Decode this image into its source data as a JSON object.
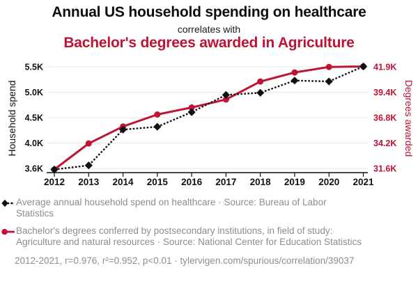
{
  "header": {
    "title_line1": "Annual US household spending on healthcare",
    "connector": "correlates with",
    "title_line2": "Bachelor's degrees awarded in Agriculture"
  },
  "chart_data": {
    "type": "line",
    "title": "Annual US household spending on healthcare correlates with Bachelor's degrees awarded in Agriculture",
    "x_labels": [
      "2012",
      "2013",
      "2014",
      "2015",
      "2016",
      "2017",
      "2018",
      "2019",
      "2020",
      "2021"
    ],
    "series": [
      {
        "name": "Average annual household spend on healthcare",
        "axis": "left",
        "color": "#111111",
        "style": "dashed-diamond",
        "values": [
          3556,
          3631,
          4290,
          4342,
          4612,
          4928,
          4968,
          5193,
          5177,
          5452
        ]
      },
      {
        "name": "Bachelor's degrees awarded in Agriculture",
        "axis": "right",
        "color": "#be1333",
        "style": "solid-circle",
        "values": [
          31600,
          34200,
          35900,
          37100,
          37800,
          38600,
          40400,
          41300,
          41850,
          41900
        ]
      }
    ],
    "left_axis": {
      "label": "Household spend",
      "tick_labels": [
        "3.6K",
        "4.0K",
        "4.5K",
        "5.0K",
        "5.5K"
      ],
      "range": [
        3556,
        5452
      ]
    },
    "right_axis": {
      "label": "Degrees awarded",
      "tick_labels": [
        "31.6K",
        "34.2K",
        "36.8K",
        "39.4K",
        "41.9K"
      ],
      "range": [
        31600,
        41900
      ]
    },
    "grid": true,
    "legend_position": "bottom"
  },
  "legend": {
    "items": [
      {
        "marker": "black-diamond-dashed",
        "color": "#111111",
        "label": "Average annual household spend on healthcare · Source: Bureau of Labor Statistics"
      },
      {
        "marker": "red-circle-solid",
        "color": "#be1333",
        "label": "Bachelor's degrees conferred by postsecondary institutions, in field of study: Agriculture and natural resources · Source: National Center for Education Statistics"
      }
    ]
  },
  "footer": {
    "text": "2012-2021, r=0.976, r²=0.952, p<0.01 · tylervigen.com/spurious/correlation/39037"
  },
  "colors": {
    "accent_red": "#be1333",
    "text_black": "#111111",
    "text_gray": "#8d8d8d",
    "grid": "#e4e4e4"
  }
}
